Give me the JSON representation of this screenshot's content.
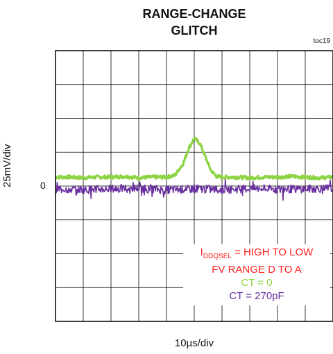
{
  "chart_data": {
    "type": "line",
    "title": "RANGE-CHANGE\nGLITCH",
    "figure_id": "toc19",
    "xlabel": "10µs/div",
    "ylabel": "25mV/div",
    "y_zero_label": "0",
    "x_divisions": 10,
    "y_divisions": 8,
    "grid": true,
    "colors": {
      "ct0": "#8cd443",
      "ct270": "#6a2fa0",
      "annotation": "#ff2020",
      "grid": "#000000"
    },
    "annotation": {
      "line1_main": "I",
      "line1_sub": "DDQSEL",
      "line1_rest": " = HIGH TO LOW",
      "line2": "FV RANGE D TO A"
    },
    "series": [
      {
        "name": "CT = 0",
        "x_div": [
          0,
          0.5,
          1,
          1.5,
          2,
          2.5,
          3,
          3.5,
          4,
          4.3,
          4.6,
          4.8,
          5.0,
          5.2,
          5.4,
          5.6,
          5.8,
          6.0,
          6.5,
          7,
          7.5,
          8,
          8.5,
          9,
          9.5,
          10
        ],
        "y_div": [
          0.1,
          0.1,
          0.08,
          0.1,
          0.1,
          0.12,
          0.08,
          0.1,
          0.1,
          0.15,
          0.5,
          0.95,
          1.25,
          1.1,
          0.7,
          0.3,
          0.12,
          0.1,
          0.1,
          0.08,
          0.1,
          0.1,
          0.12,
          0.1,
          0.08,
          0.1
        ]
      },
      {
        "name": "CT = 270pF",
        "x_div": [
          0,
          1,
          2,
          3,
          4,
          5,
          6,
          7,
          8,
          9,
          10
        ],
        "y_div": [
          -0.25,
          -0.27,
          -0.25,
          -0.22,
          -0.28,
          -0.25,
          -0.27,
          -0.24,
          -0.26,
          -0.25,
          -0.23
        ]
      }
    ]
  }
}
